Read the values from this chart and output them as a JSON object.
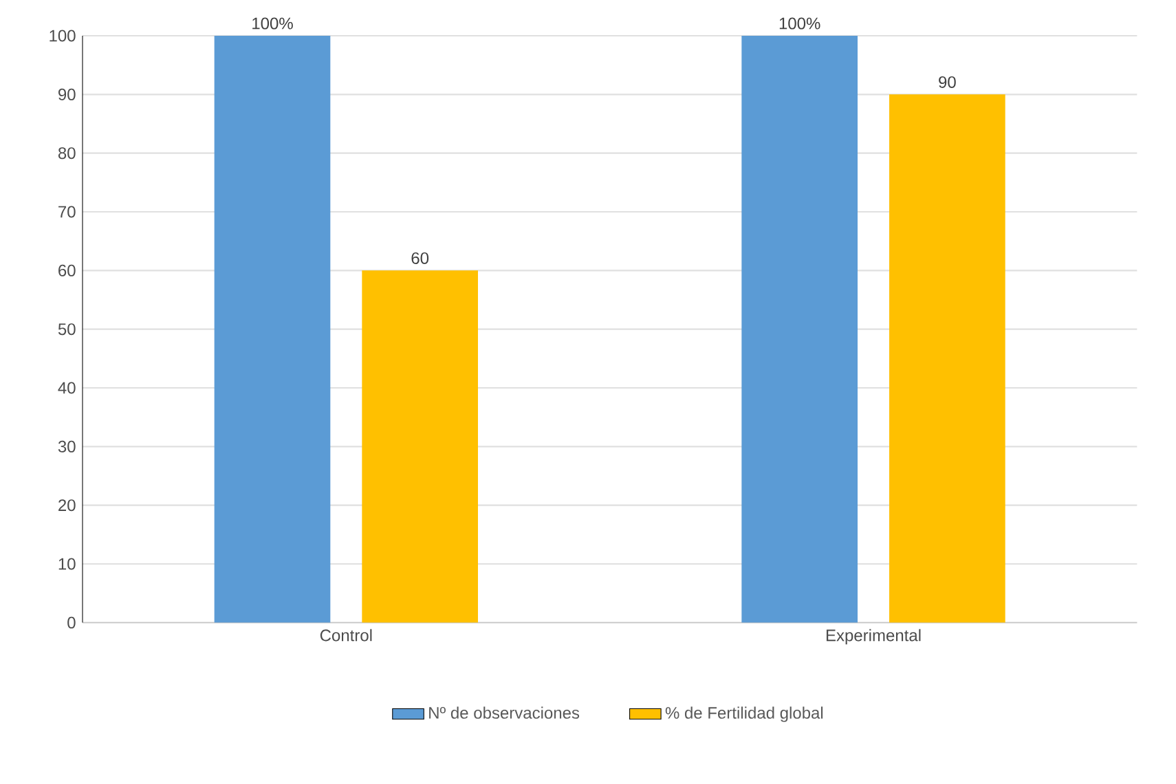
{
  "chart_data": {
    "type": "bar",
    "categories": [
      "Control",
      "Experimental"
    ],
    "series": [
      {
        "name": "Nº de observaciones",
        "color": "#5b9bd5",
        "values": [
          100,
          100
        ],
        "value_labels": [
          "100%",
          "100%"
        ]
      },
      {
        "name": "% de Fertilidad global",
        "color": "#ffc000",
        "values": [
          60,
          90
        ],
        "value_labels": [
          "60",
          "90"
        ]
      }
    ],
    "ylim": [
      0,
      100
    ],
    "yticks": [
      0,
      10,
      20,
      30,
      40,
      50,
      60,
      70,
      80,
      90,
      100
    ],
    "grid": "y",
    "legend": "bottom"
  }
}
